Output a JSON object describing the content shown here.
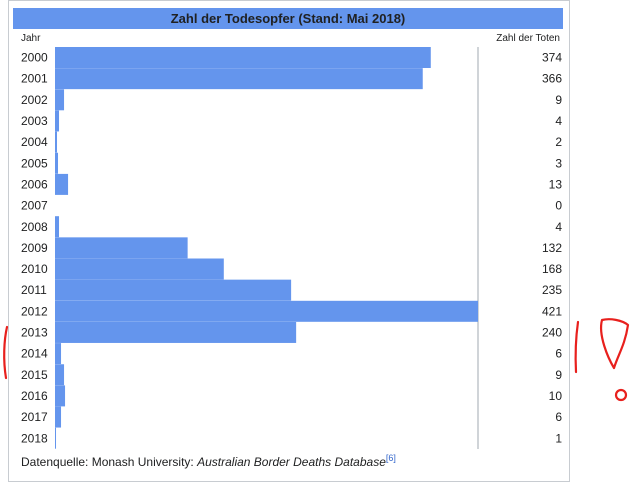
{
  "header": {
    "title": "Zahl der Todesopfer (Stand: Mai 2018)",
    "year_col": "Jahr",
    "count_col": "Zahl der Toten"
  },
  "chart_data": {
    "type": "bar",
    "orientation": "horizontal",
    "title": "Zahl der Todesopfer (Stand: Mai 2018)",
    "xlabel": "Zahl der Toten",
    "ylabel": "Jahr",
    "categories": [
      "2000",
      "2001",
      "2002",
      "2003",
      "2004",
      "2005",
      "2006",
      "2007",
      "2008",
      "2009",
      "2010",
      "2011",
      "2012",
      "2013",
      "2014",
      "2015",
      "2016",
      "2017",
      "2018"
    ],
    "values": [
      374,
      366,
      9,
      4,
      2,
      3,
      13,
      0,
      4,
      132,
      168,
      235,
      421,
      240,
      6,
      9,
      10,
      6,
      1
    ],
    "xlim": [
      0,
      421
    ],
    "grid": false,
    "bar_color": "#6495ed"
  },
  "footer": {
    "source_prefix": "Datenquelle: Monash University: ",
    "source_title": "Australian Border Deaths Database",
    "source_ref": "[6]"
  },
  "colors": {
    "bar": "#6495ed",
    "annotation": "#e8201d"
  }
}
